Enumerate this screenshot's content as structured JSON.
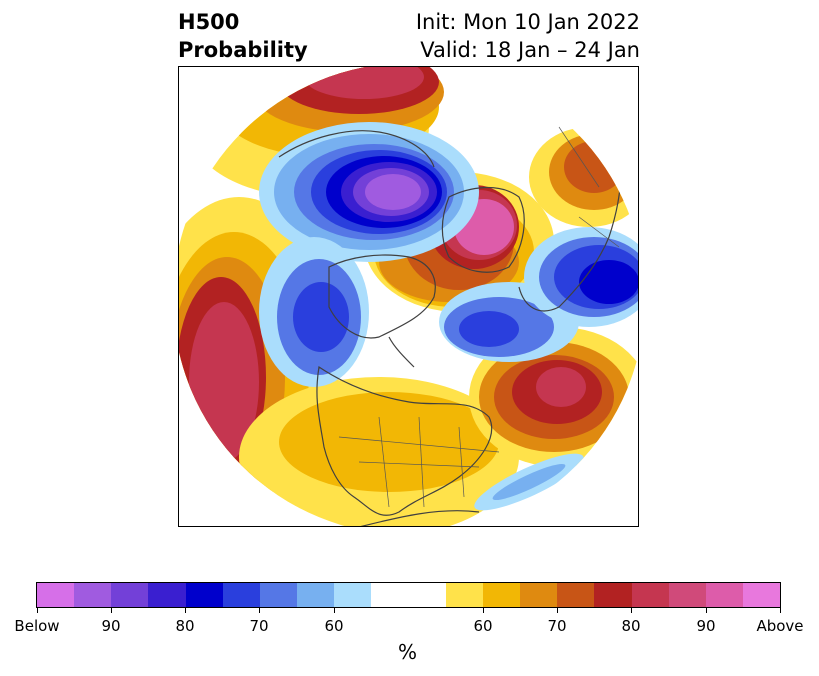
{
  "header": {
    "title_line1": "H500",
    "title_line2": "Probability",
    "init": "Init: Mon 10 Jan 2022",
    "valid": "Valid: 18 Jan – 24 Jan"
  },
  "colorbar": {
    "unit": "%",
    "colors": [
      "#d66fe8",
      "#a05be0",
      "#7340d8",
      "#3a1fd0",
      "#0000cc",
      "#2a3fdd",
      "#5577e6",
      "#77b0f0",
      "#aaddfc",
      "#ffffff",
      "#ffffff",
      "#ffe24a",
      "#f2b705",
      "#df8a10",
      "#c85516",
      "#b22222",
      "#c53650",
      "#d04a7a",
      "#dd5caa",
      "#e878dd"
    ],
    "tick_labels": [
      "Below",
      "90",
      "80",
      "70",
      "60",
      "60",
      "70",
      "80",
      "90",
      "Above"
    ]
  },
  "legend_colors": {
    "below_strong": "#7340d8",
    "below_mid": "#2a3fdd",
    "below_weak": "#aaddfc",
    "above_weak": "#ffe24a",
    "above_mid": "#df8a10",
    "above_strong": "#c53650"
  }
}
